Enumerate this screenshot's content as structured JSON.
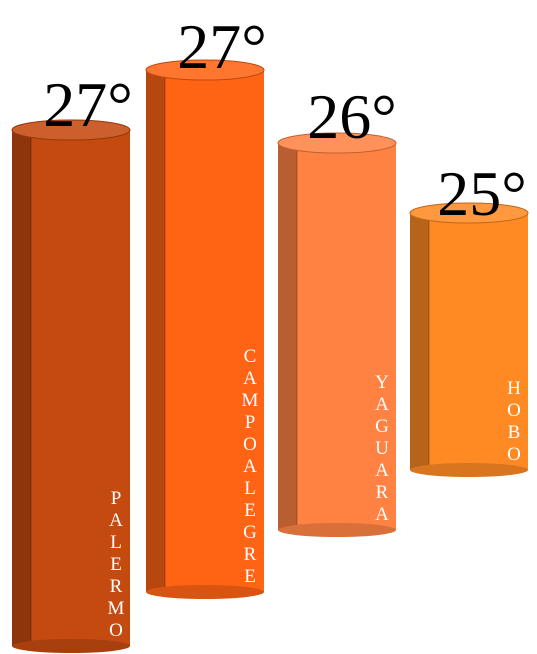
{
  "chart_data": {
    "type": "bar",
    "categories": [
      "PALERMO",
      "CAMPOALEGRE",
      "YAGUARA",
      "HOBO"
    ],
    "values": [
      27,
      27,
      26,
      25
    ],
    "labels": [
      "27°",
      "27°",
      "26°",
      "25°"
    ],
    "unit": "°",
    "colors": [
      "#C54A10",
      "#FF6314",
      "#FF8243",
      "#FF8A24"
    ],
    "title": "",
    "xlabel": "",
    "ylabel": ""
  }
}
